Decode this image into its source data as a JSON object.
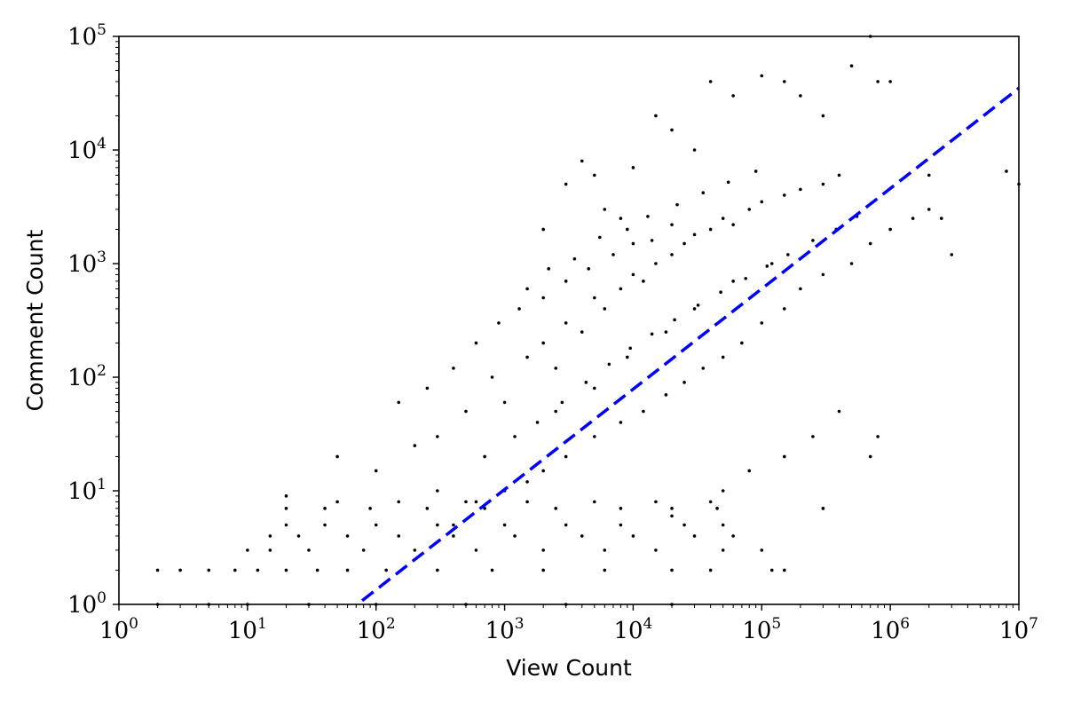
{
  "chart_data": {
    "type": "scatter",
    "title": "",
    "xlabel": "View Count",
    "ylabel": "Comment Count",
    "xscale": "log",
    "yscale": "log",
    "xlim": [
      1,
      10000000
    ],
    "ylim": [
      1,
      100000
    ],
    "grid": false,
    "legend": "none",
    "x_ticks": [
      {
        "base": "10",
        "exp": "0",
        "value": 1
      },
      {
        "base": "10",
        "exp": "1",
        "value": 10
      },
      {
        "base": "10",
        "exp": "2",
        "value": 100
      },
      {
        "base": "10",
        "exp": "3",
        "value": 1000
      },
      {
        "base": "10",
        "exp": "4",
        "value": 10000
      },
      {
        "base": "10",
        "exp": "5",
        "value": 100000
      },
      {
        "base": "10",
        "exp": "6",
        "value": 1000000
      },
      {
        "base": "10",
        "exp": "7",
        "value": 10000000
      }
    ],
    "y_ticks": [
      {
        "base": "10",
        "exp": "0",
        "value": 1
      },
      {
        "base": "10",
        "exp": "1",
        "value": 10
      },
      {
        "base": "10",
        "exp": "2",
        "value": 100
      },
      {
        "base": "10",
        "exp": "3",
        "value": 1000
      },
      {
        "base": "10",
        "exp": "4",
        "value": 10000
      },
      {
        "base": "10",
        "exp": "5",
        "value": 100000
      }
    ],
    "series": [
      {
        "type": "scatter",
        "color": "#000000",
        "points": [
          [
            2,
            2
          ],
          [
            3,
            2
          ],
          [
            5,
            2
          ],
          [
            8,
            2
          ],
          [
            12,
            2
          ],
          [
            20,
            2
          ],
          [
            35,
            2
          ],
          [
            60,
            2
          ],
          [
            120,
            2
          ],
          [
            300,
            2
          ],
          [
            800,
            2
          ],
          [
            2000,
            2
          ],
          [
            6000,
            2
          ],
          [
            20000,
            2
          ],
          [
            40000,
            2
          ],
          [
            120000,
            2
          ],
          [
            150000,
            2
          ],
          [
            2,
            1
          ],
          [
            5,
            1
          ],
          [
            10,
            1
          ],
          [
            30,
            1
          ],
          [
            100,
            1
          ],
          [
            500,
            1
          ],
          [
            3000,
            1
          ],
          [
            20000,
            1
          ],
          [
            10,
            3
          ],
          [
            15,
            3
          ],
          [
            30,
            3
          ],
          [
            80,
            3
          ],
          [
            200,
            3
          ],
          [
            600,
            3
          ],
          [
            2000,
            3
          ],
          [
            6000,
            3
          ],
          [
            15000,
            3
          ],
          [
            50000,
            3
          ],
          [
            100000,
            3
          ],
          [
            15,
            4
          ],
          [
            25,
            4
          ],
          [
            60,
            4
          ],
          [
            150,
            4
          ],
          [
            400,
            4
          ],
          [
            1200,
            4
          ],
          [
            4000,
            4
          ],
          [
            10000,
            4
          ],
          [
            30000,
            4
          ],
          [
            60000,
            4
          ],
          [
            20,
            5
          ],
          [
            40,
            5
          ],
          [
            100,
            5
          ],
          [
            300,
            5
          ],
          [
            1000,
            5
          ],
          [
            3000,
            5
          ],
          [
            8000,
            5
          ],
          [
            25000,
            5
          ],
          [
            50000,
            5
          ],
          [
            20,
            7
          ],
          [
            40,
            7
          ],
          [
            90,
            7
          ],
          [
            250,
            7
          ],
          [
            700,
            7
          ],
          [
            2500,
            7
          ],
          [
            8000,
            7
          ],
          [
            20000,
            7
          ],
          [
            45000,
            7
          ],
          [
            300000,
            7
          ],
          [
            20,
            9
          ],
          [
            50,
            8
          ],
          [
            150,
            8
          ],
          [
            500,
            8
          ],
          [
            1500,
            8
          ],
          [
            5000,
            8
          ],
          [
            15000,
            8
          ],
          [
            40000,
            8
          ],
          [
            50,
            20
          ],
          [
            100,
            15
          ],
          [
            200,
            25
          ],
          [
            300,
            30
          ],
          [
            500,
            50
          ],
          [
            800,
            100
          ],
          [
            1000,
            60
          ],
          [
            1500,
            150
          ],
          [
            2000,
            200
          ],
          [
            2500,
            120
          ],
          [
            3000,
            300
          ],
          [
            4000,
            250
          ],
          [
            5000,
            500
          ],
          [
            6000,
            400
          ],
          [
            8000,
            600
          ],
          [
            10000,
            800
          ],
          [
            12000,
            700
          ],
          [
            15000,
            1000
          ],
          [
            20000,
            1200
          ],
          [
            25000,
            1500
          ],
          [
            30000,
            1800
          ],
          [
            40000,
            2000
          ],
          [
            50000,
            2500
          ],
          [
            60000,
            2200
          ],
          [
            80000,
            3000
          ],
          [
            100000,
            3500
          ],
          [
            150000,
            4000
          ],
          [
            200000,
            4500
          ],
          [
            300000,
            5000
          ],
          [
            400000,
            6000
          ],
          [
            150,
            60
          ],
          [
            250,
            80
          ],
          [
            400,
            120
          ],
          [
            600,
            200
          ],
          [
            900,
            300
          ],
          [
            1300,
            400
          ],
          [
            2000,
            500
          ],
          [
            3000,
            700
          ],
          [
            4500,
            900
          ],
          [
            7000,
            1200
          ],
          [
            10000,
            1500
          ],
          [
            14000,
            1600
          ],
          [
            20000,
            2200
          ],
          [
            400,
            5
          ],
          [
            600,
            8
          ],
          [
            1000,
            10
          ],
          [
            1500,
            12
          ],
          [
            2000,
            15
          ],
          [
            3000,
            20
          ],
          [
            5000,
            30
          ],
          [
            8000,
            40
          ],
          [
            12000,
            50
          ],
          [
            18000,
            70
          ],
          [
            25000,
            90
          ],
          [
            35000,
            120
          ],
          [
            50000,
            150
          ],
          [
            70000,
            200
          ],
          [
            100000,
            300
          ],
          [
            150000,
            400
          ],
          [
            200000,
            600
          ],
          [
            300000,
            800
          ],
          [
            500000,
            1000
          ],
          [
            700000,
            1500
          ],
          [
            1000000,
            2000
          ],
          [
            1500000,
            2500
          ],
          [
            2000000,
            3000
          ],
          [
            300,
            10
          ],
          [
            700,
            20
          ],
          [
            1200,
            30
          ],
          [
            2500,
            50
          ],
          [
            5000,
            80
          ],
          [
            9000,
            150
          ],
          [
            18000,
            250
          ],
          [
            30000,
            400
          ],
          [
            60000,
            700
          ],
          [
            120000,
            1000
          ],
          [
            2000,
            2000
          ],
          [
            3000,
            5000
          ],
          [
            4000,
            8000
          ],
          [
            5000,
            6000
          ],
          [
            6000,
            3000
          ],
          [
            8000,
            2500
          ],
          [
            10000,
            7000
          ],
          [
            15000,
            20000
          ],
          [
            20000,
            15000
          ],
          [
            30000,
            10000
          ],
          [
            40000,
            40000
          ],
          [
            60000,
            30000
          ],
          [
            100000,
            45000
          ],
          [
            150000,
            40000
          ],
          [
            200000,
            30000
          ],
          [
            300000,
            20000
          ],
          [
            500000,
            55000
          ],
          [
            700000,
            100000
          ],
          [
            800000,
            40000
          ],
          [
            1000000,
            40000
          ],
          [
            20000,
            6
          ],
          [
            50000,
            10
          ],
          [
            80000,
            15
          ],
          [
            150000,
            20
          ],
          [
            250000,
            30
          ],
          [
            400000,
            50
          ],
          [
            700000,
            20
          ],
          [
            300000,
            7
          ],
          [
            800000,
            30
          ],
          [
            2000000,
            6000
          ],
          [
            2500000,
            2500
          ],
          [
            3000000,
            1200
          ],
          [
            8000000,
            6500
          ],
          [
            10000000,
            5000
          ],
          [
            1500,
            600
          ],
          [
            2200,
            900
          ],
          [
            3500,
            1100
          ],
          [
            5500,
            1700
          ],
          [
            9000,
            2000
          ],
          [
            13000,
            2600
          ],
          [
            22000,
            3300
          ],
          [
            35000,
            4200
          ],
          [
            55000,
            5200
          ],
          [
            90000,
            6500
          ],
          [
            1800,
            40
          ],
          [
            2800,
            60
          ],
          [
            4300,
            90
          ],
          [
            6500,
            130
          ],
          [
            9500,
            180
          ],
          [
            14000,
            240
          ],
          [
            21000,
            320
          ],
          [
            32000,
            430
          ],
          [
            48000,
            560
          ],
          [
            75000,
            740
          ],
          [
            110000,
            950
          ],
          [
            160000,
            1200
          ],
          [
            250000,
            1600
          ],
          [
            380000,
            2000
          ],
          [
            550000,
            2600
          ]
        ]
      },
      {
        "type": "line",
        "style": "dashed",
        "color": "#0000ff",
        "points": [
          [
            78,
            1.08
          ],
          [
            10000000,
            35000
          ]
        ]
      }
    ]
  }
}
